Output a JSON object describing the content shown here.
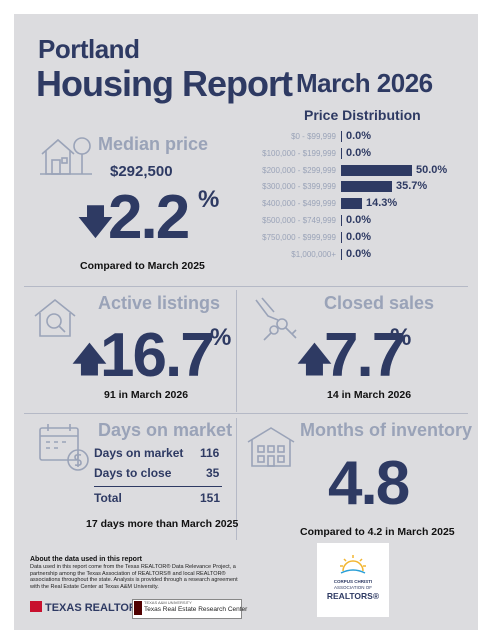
{
  "header": {
    "city": "Portland",
    "title": "Housing Report",
    "month": "March 2026"
  },
  "price_distribution": {
    "title": "Price Distribution",
    "rows": [
      {
        "range": "$0 - $99,999",
        "value": "0.0%",
        "pct": 0.0
      },
      {
        "range": "$100,000 - $199,999",
        "value": "0.0%",
        "pct": 0.0
      },
      {
        "range": "$200,000 - $299,999",
        "value": "50.0%",
        "pct": 50.0
      },
      {
        "range": "$300,000 - $399,999",
        "value": "35.7%",
        "pct": 35.7
      },
      {
        "range": "$400,000 - $499,999",
        "value": "14.3%",
        "pct": 14.3
      },
      {
        "range": "$500,000 - $749,999",
        "value": "0.0%",
        "pct": 0.0
      },
      {
        "range": "$750,000 - $999,999",
        "value": "0.0%",
        "pct": 0.0
      },
      {
        "range": "$1,000,000+",
        "value": "0.0%",
        "pct": 0.0
      }
    ]
  },
  "median_price": {
    "title": "Median price",
    "value": "$292,500",
    "direction": "down",
    "arrow": "🡇",
    "change": "2.2",
    "pct_sign": "%",
    "comparison": "Compared to March 2025"
  },
  "active_listings": {
    "title": "Active listings",
    "direction": "up",
    "arrow": "🡅",
    "change": "16.7",
    "pct_sign": "%",
    "caption": "91 in March 2026"
  },
  "closed_sales": {
    "title": "Closed sales",
    "direction": "up",
    "arrow": "🡅",
    "change": "7.7",
    "pct_sign": "%",
    "caption": "14 in March 2026"
  },
  "days_on_market": {
    "title": "Days on market",
    "rows": [
      {
        "label": "Days on market",
        "value": "116"
      },
      {
        "label": "Days to close",
        "value": "35"
      }
    ],
    "total_label": "Total",
    "total_value": "151",
    "caption": "17 days more than March 2025"
  },
  "months_inventory": {
    "title": "Months of inventory",
    "value": "4.8",
    "caption": "Compared to 4.2 in March 2025"
  },
  "about": {
    "heading": "About the data used in this report",
    "body": "Data used in this report come from the Texas REALTOR® Data Relevance Project, a partnership among the Texas Association of REALTORS® and local REALTOR® associations throughout the state. Analysis is provided through a research agreement with the Real Estate Center at Texas A&M University."
  },
  "logos": {
    "texas_realtors": "TEXAS REALTORS",
    "rec_small": "TEXAS A&M UNIVERSITY",
    "rec": "Texas Real Estate Research Center",
    "cc_line1": "CORPUS CHRISTI",
    "cc_line2": "ASSOCIATION OF",
    "cc_line3": "REALTORS®"
  },
  "colors": {
    "navy": "#2e3a63",
    "muted": "#9aa3b8",
    "panel": "#dcdcdf"
  }
}
